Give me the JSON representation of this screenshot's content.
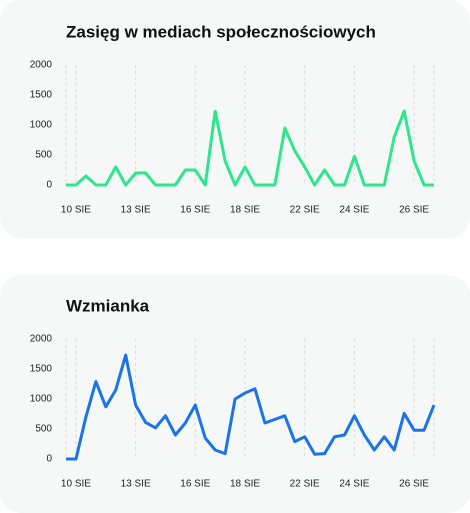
{
  "chart_data": [
    {
      "type": "line",
      "title": "Zasięg w mediach społecznościowych",
      "categories": [
        null,
        "10 SIE",
        null,
        null,
        null,
        null,
        null,
        "13 SIE",
        null,
        null,
        null,
        null,
        null,
        "16 SIE",
        null,
        null,
        null,
        null,
        "18 SIE",
        null,
        null,
        null,
        null,
        null,
        "22 SIE",
        null,
        null,
        null,
        null,
        "24 SIE",
        null,
        null,
        null,
        null,
        null,
        "26 SIE",
        null,
        null
      ],
      "series": [
        {
          "color": "#2fe58d",
          "values": [
            0,
            0,
            150,
            0,
            0,
            300,
            0,
            200,
            200,
            0,
            0,
            0,
            250,
            250,
            0,
            1230,
            400,
            0,
            300,
            0,
            0,
            0,
            950,
            570,
            300,
            0,
            250,
            0,
            0,
            480,
            0,
            0,
            0,
            800,
            1230,
            400,
            0,
            0
          ]
        }
      ],
      "ylim": [
        0,
        2000
      ],
      "yticks": [
        0,
        500,
        1000,
        1500,
        2000
      ],
      "grid": true
    },
    {
      "type": "line",
      "title": "Wzmianka",
      "categories": [
        null,
        "10 SIE",
        null,
        null,
        null,
        null,
        null,
        "13 SIE",
        null,
        null,
        null,
        null,
        null,
        "16 SIE",
        null,
        null,
        null,
        null,
        "18 SIE",
        null,
        null,
        null,
        null,
        null,
        "22 SIE",
        null,
        null,
        null,
        null,
        "24 SIE",
        null,
        null,
        null,
        null,
        null,
        "26 SIE",
        null,
        null
      ],
      "series": [
        {
          "color": "#1a73e8",
          "values": [
            0,
            0,
            700,
            1290,
            870,
            1150,
            1730,
            900,
            610,
            520,
            720,
            400,
            600,
            900,
            350,
            150,
            90,
            1000,
            1100,
            1170,
            600,
            660,
            720,
            290,
            370,
            80,
            90,
            370,
            400,
            720,
            400,
            150,
            370,
            150,
            760,
            480,
            480,
            900
          ]
        }
      ],
      "ylim": [
        0,
        2000
      ],
      "yticks": [
        0,
        500,
        1000,
        1500,
        2000
      ],
      "grid": true
    }
  ]
}
